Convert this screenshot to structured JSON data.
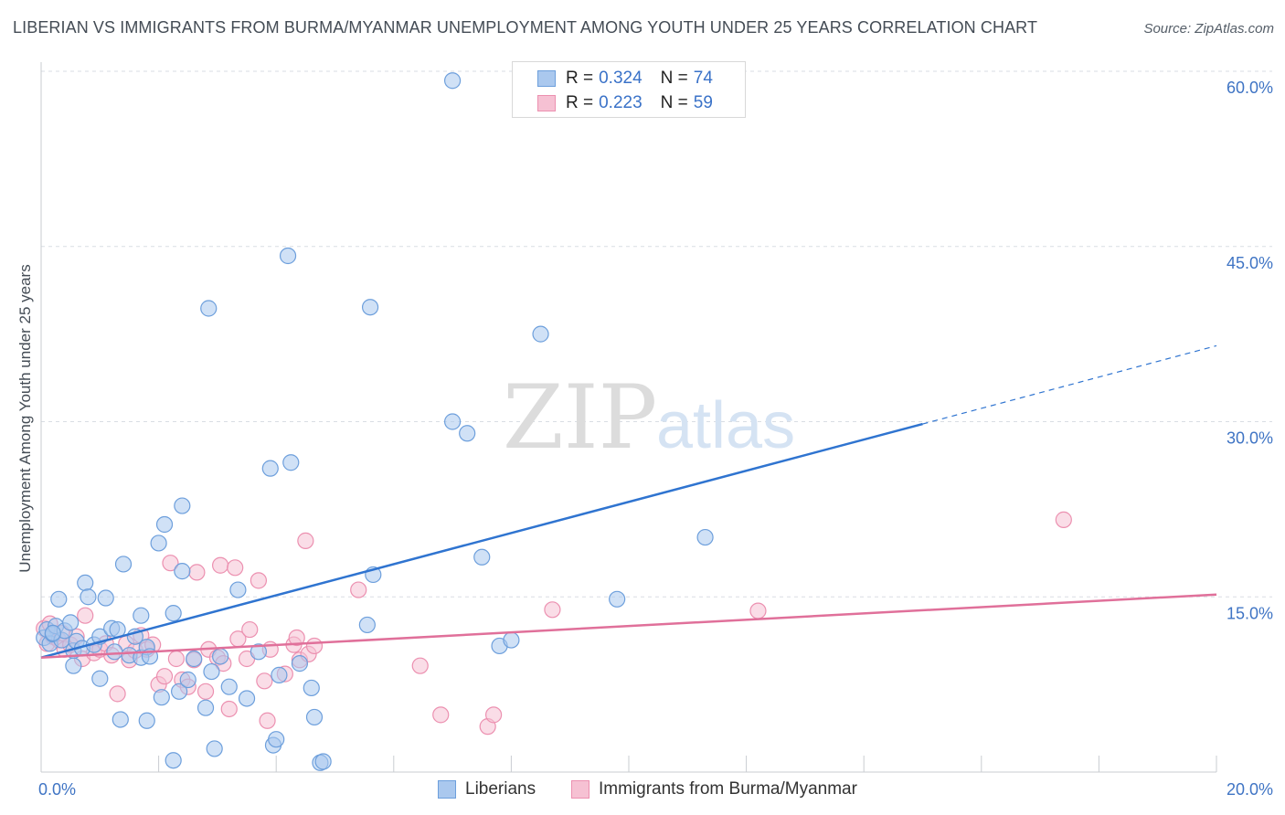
{
  "header": {
    "title": "LIBERIAN VS IMMIGRANTS FROM BURMA/MYANMAR UNEMPLOYMENT AMONG YOUTH UNDER 25 YEARS CORRELATION CHART",
    "source": "Source: ZipAtlas.com"
  },
  "watermark": {
    "zip": "ZIP",
    "atlas": "atlas"
  },
  "stats": {
    "blue": {
      "r_label": "R = ",
      "r_value": "0.324",
      "n_label": "N = ",
      "n_value": "74"
    },
    "pink": {
      "r_label": "R = ",
      "r_value": "0.223",
      "n_label": "N = ",
      "n_value": "59"
    }
  },
  "legend": {
    "blue_label": "Liberians",
    "pink_label": "Immigrants from Burma/Myanmar"
  },
  "colors": {
    "blue_fill": "#aac8ee",
    "blue_stroke": "#6d9fdc",
    "blue_line": "#2f74d0",
    "pink_fill": "#f6c1d3",
    "pink_stroke": "#ec90b0",
    "pink_line": "#e0709a",
    "grid": "#d9dde3",
    "tick_text": "#3f74c4"
  },
  "chart_data": {
    "type": "scatter",
    "title": "LIBERIAN VS IMMIGRANTS FROM BURMA/MYANMAR UNEMPLOYMENT AMONG YOUTH UNDER 25 YEARS CORRELATION CHART",
    "xlabel": "",
    "ylabel": "Unemployment Among Youth under 25 years",
    "xlim": [
      0,
      20
    ],
    "ylim": [
      0,
      60
    ],
    "x_tick_labels": [
      {
        "value": 0,
        "label": "0.0%"
      },
      {
        "value": 20,
        "label": "20.0%"
      }
    ],
    "y_tick_labels": [
      {
        "value": 15,
        "label": "15.0%"
      },
      {
        "value": 30,
        "label": "30.0%"
      },
      {
        "value": 45,
        "label": "45.0%"
      },
      {
        "value": 60,
        "label": "60.0%"
      }
    ],
    "grid": true,
    "legend_position": "bottom-center",
    "series": [
      {
        "name": "Liberians",
        "color": "#aac8ee",
        "r": 0.324,
        "n": 74,
        "trend": {
          "x0": 0,
          "y0": 9.8,
          "x1": 15,
          "y1": 29.8,
          "dashed_to_x": 20,
          "dashed_to_y": 36.5
        },
        "points": [
          [
            0.05,
            11.5
          ],
          [
            0.1,
            12.2
          ],
          [
            0.15,
            11.0
          ],
          [
            0.2,
            11.8
          ],
          [
            0.25,
            12.5
          ],
          [
            0.3,
            14.8
          ],
          [
            0.35,
            11.3
          ],
          [
            0.4,
            12.1
          ],
          [
            0.5,
            12.8
          ],
          [
            0.55,
            10.4
          ],
          [
            0.6,
            11.2
          ],
          [
            0.7,
            10.6
          ],
          [
            0.75,
            16.2
          ],
          [
            0.8,
            15.0
          ],
          [
            0.9,
            10.9
          ],
          [
            1.0,
            11.6
          ],
          [
            1.1,
            14.9
          ],
          [
            1.2,
            12.3
          ],
          [
            1.25,
            10.3
          ],
          [
            1.3,
            12.2
          ],
          [
            1.4,
            17.8
          ],
          [
            1.5,
            10.0
          ],
          [
            1.6,
            11.6
          ],
          [
            1.7,
            9.8
          ],
          [
            1.7,
            13.4
          ],
          [
            1.8,
            10.7
          ],
          [
            1.85,
            9.9
          ],
          [
            2.0,
            19.6
          ],
          [
            2.1,
            21.2
          ],
          [
            2.25,
            13.6
          ],
          [
            2.4,
            17.2
          ],
          [
            2.4,
            22.8
          ],
          [
            0.55,
            9.1
          ],
          [
            1.0,
            8.0
          ],
          [
            1.35,
            4.5
          ],
          [
            1.8,
            4.4
          ],
          [
            2.05,
            6.4
          ],
          [
            2.25,
            1.0
          ],
          [
            2.35,
            6.9
          ],
          [
            2.5,
            7.9
          ],
          [
            2.6,
            9.7
          ],
          [
            2.8,
            5.5
          ],
          [
            2.85,
            39.7
          ],
          [
            2.9,
            8.6
          ],
          [
            2.95,
            2.0
          ],
          [
            3.05,
            9.9
          ],
          [
            3.2,
            7.3
          ],
          [
            3.35,
            15.6
          ],
          [
            3.5,
            6.3
          ],
          [
            3.7,
            10.3
          ],
          [
            3.9,
            26.0
          ],
          [
            3.95,
            2.3
          ],
          [
            4.0,
            2.8
          ],
          [
            4.05,
            8.3
          ],
          [
            4.2,
            44.2
          ],
          [
            4.25,
            26.5
          ],
          [
            4.4,
            9.3
          ],
          [
            4.6,
            7.2
          ],
          [
            4.65,
            4.7
          ],
          [
            4.75,
            0.8
          ],
          [
            4.8,
            0.9
          ],
          [
            5.55,
            12.6
          ],
          [
            5.6,
            39.8
          ],
          [
            5.65,
            16.9
          ],
          [
            7.0,
            59.2
          ],
          [
            7.0,
            30.0
          ],
          [
            7.25,
            29.0
          ],
          [
            7.5,
            18.4
          ],
          [
            7.8,
            10.8
          ],
          [
            8.0,
            11.3
          ],
          [
            8.5,
            37.5
          ],
          [
            9.8,
            14.8
          ],
          [
            11.3,
            20.1
          ],
          [
            0.2,
            11.9
          ]
        ]
      },
      {
        "name": "Immigrants from Burma/Myanmar",
        "color": "#f6c1d3",
        "r": 0.223,
        "n": 59,
        "trend": {
          "x0": 0,
          "y0": 9.8,
          "x1": 20,
          "y1": 15.2
        },
        "points": [
          [
            0.05,
            12.3
          ],
          [
            0.1,
            11.0
          ],
          [
            0.2,
            11.6
          ],
          [
            0.3,
            11.3
          ],
          [
            0.4,
            10.5
          ],
          [
            0.5,
            10.9
          ],
          [
            0.6,
            11.6
          ],
          [
            0.7,
            9.7
          ],
          [
            0.75,
            13.4
          ],
          [
            0.9,
            10.2
          ],
          [
            1.0,
            10.5
          ],
          [
            1.1,
            11.0
          ],
          [
            1.2,
            10.0
          ],
          [
            1.3,
            6.7
          ],
          [
            1.45,
            11.0
          ],
          [
            1.5,
            9.6
          ],
          [
            1.6,
            10.4
          ],
          [
            1.7,
            11.7
          ],
          [
            1.8,
            10.5
          ],
          [
            1.9,
            10.9
          ],
          [
            2.0,
            7.5
          ],
          [
            2.1,
            8.2
          ],
          [
            2.2,
            17.9
          ],
          [
            2.3,
            9.7
          ],
          [
            2.4,
            7.9
          ],
          [
            2.5,
            7.3
          ],
          [
            2.6,
            9.6
          ],
          [
            2.65,
            17.1
          ],
          [
            2.8,
            6.9
          ],
          [
            2.85,
            10.5
          ],
          [
            3.0,
            9.8
          ],
          [
            3.05,
            17.7
          ],
          [
            3.1,
            9.3
          ],
          [
            3.2,
            5.4
          ],
          [
            3.3,
            17.5
          ],
          [
            3.35,
            11.4
          ],
          [
            3.5,
            9.7
          ],
          [
            3.55,
            12.2
          ],
          [
            3.7,
            16.4
          ],
          [
            3.8,
            7.8
          ],
          [
            3.85,
            4.4
          ],
          [
            3.9,
            10.5
          ],
          [
            4.15,
            8.4
          ],
          [
            4.3,
            10.9
          ],
          [
            4.35,
            11.5
          ],
          [
            4.4,
            9.6
          ],
          [
            4.55,
            10.1
          ],
          [
            4.65,
            10.8
          ],
          [
            4.5,
            19.8
          ],
          [
            5.4,
            15.6
          ],
          [
            6.45,
            9.1
          ],
          [
            6.8,
            4.9
          ],
          [
            7.6,
            3.9
          ],
          [
            7.7,
            4.9
          ],
          [
            8.7,
            13.9
          ],
          [
            12.2,
            13.8
          ],
          [
            17.4,
            21.6
          ],
          [
            0.15,
            12.7
          ],
          [
            0.35,
            11.9
          ]
        ]
      }
    ]
  }
}
